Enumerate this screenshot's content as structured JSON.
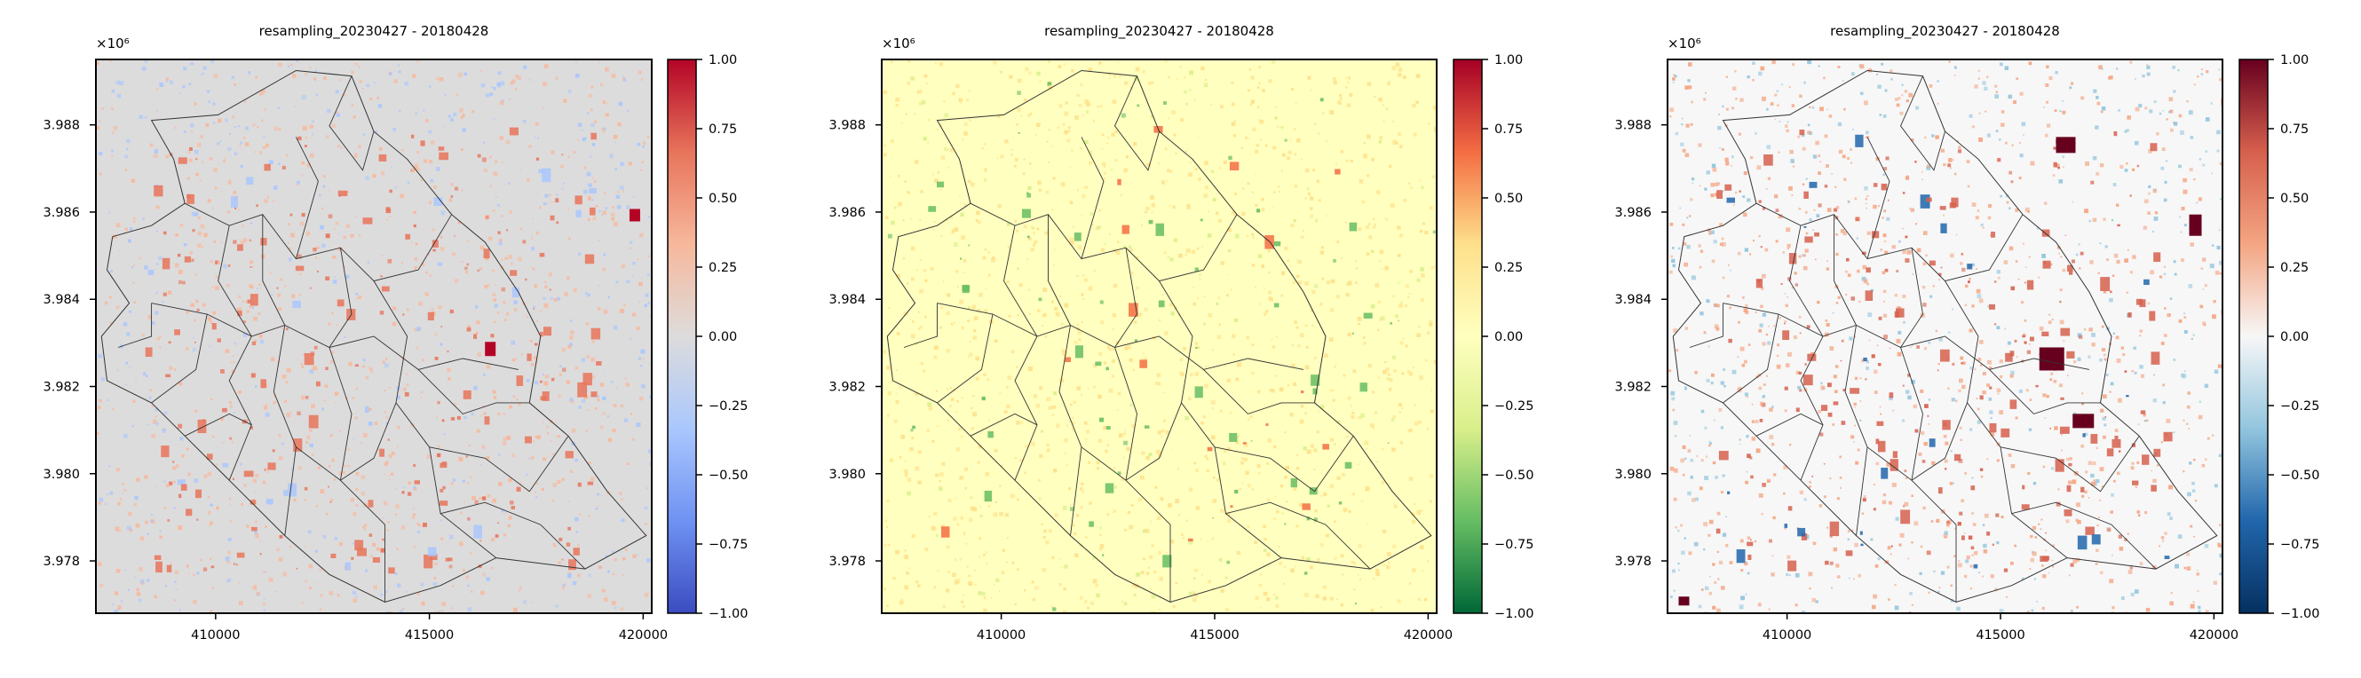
{
  "figure": {
    "panel_count": 3
  },
  "chart_data": [
    {
      "type": "heatmap",
      "title": "resampling_20230427 - 20180428",
      "colormap": "coolwarm",
      "colormap_colors": [
        "#3b4cc0",
        "#6f92f3",
        "#aac7fd",
        "#dddcdc",
        "#f7b89c",
        "#e7745b",
        "#b40426"
      ],
      "xlim": [
        407200,
        420200
      ],
      "ylim": [
        3976800,
        3989500
      ],
      "xticks": [
        "410000",
        "415000",
        "420000"
      ],
      "yticks": [
        "3.978",
        "3.980",
        "3.982",
        "3.984",
        "3.986",
        "3.988"
      ],
      "y_exponent_label": "×10⁶",
      "colorbar": {
        "range": [
          -1.0,
          1.0
        ],
        "ticks": [
          "1.00",
          "0.75",
          "0.50",
          "0.25",
          "0.00",
          "−0.25",
          "−0.50",
          "−0.75",
          "−1.00"
        ]
      },
      "overlay": "district boundaries",
      "grid": false
    },
    {
      "type": "heatmap",
      "title": "resampling_20230427 - 20180428",
      "colormap": "RdYlGn_r",
      "colormap_colors": [
        "#006837",
        "#66bd63",
        "#d9ef8b",
        "#ffffbf",
        "#fee08b",
        "#f46d43",
        "#a50026"
      ],
      "xlim": [
        407200,
        420200
      ],
      "ylim": [
        3976800,
        3989500
      ],
      "xticks": [
        "410000",
        "415000",
        "420000"
      ],
      "yticks": [
        "3.978",
        "3.980",
        "3.982",
        "3.984",
        "3.986",
        "3.988"
      ],
      "y_exponent_label": "×10⁶",
      "colorbar": {
        "range": [
          -1.0,
          1.0
        ],
        "ticks": [
          "1.00",
          "0.75",
          "0.50",
          "0.25",
          "0.00",
          "−0.25",
          "−0.50",
          "−0.75",
          "−1.00"
        ]
      },
      "overlay": "district boundaries",
      "grid": false
    },
    {
      "type": "heatmap",
      "title": "resampling_20230427 - 20180428",
      "colormap": "RdBu_r",
      "colormap_colors": [
        "#053061",
        "#2166ac",
        "#92c5de",
        "#f7f7f7",
        "#f4a582",
        "#d6604d",
        "#67001f"
      ],
      "xlim": [
        407200,
        420200
      ],
      "ylim": [
        3976800,
        3989500
      ],
      "xticks": [
        "410000",
        "415000",
        "420000"
      ],
      "yticks": [
        "3.978",
        "3.980",
        "3.982",
        "3.984",
        "3.986",
        "3.988"
      ],
      "y_exponent_label": "×10⁶",
      "colorbar": {
        "range": [
          -1.0,
          1.0
        ],
        "ticks": [
          "1.00",
          "0.75",
          "0.50",
          "0.25",
          "0.00",
          "−0.25",
          "−0.50",
          "−0.75",
          "−1.00"
        ]
      },
      "overlay": "district boundaries",
      "grid": false
    }
  ]
}
